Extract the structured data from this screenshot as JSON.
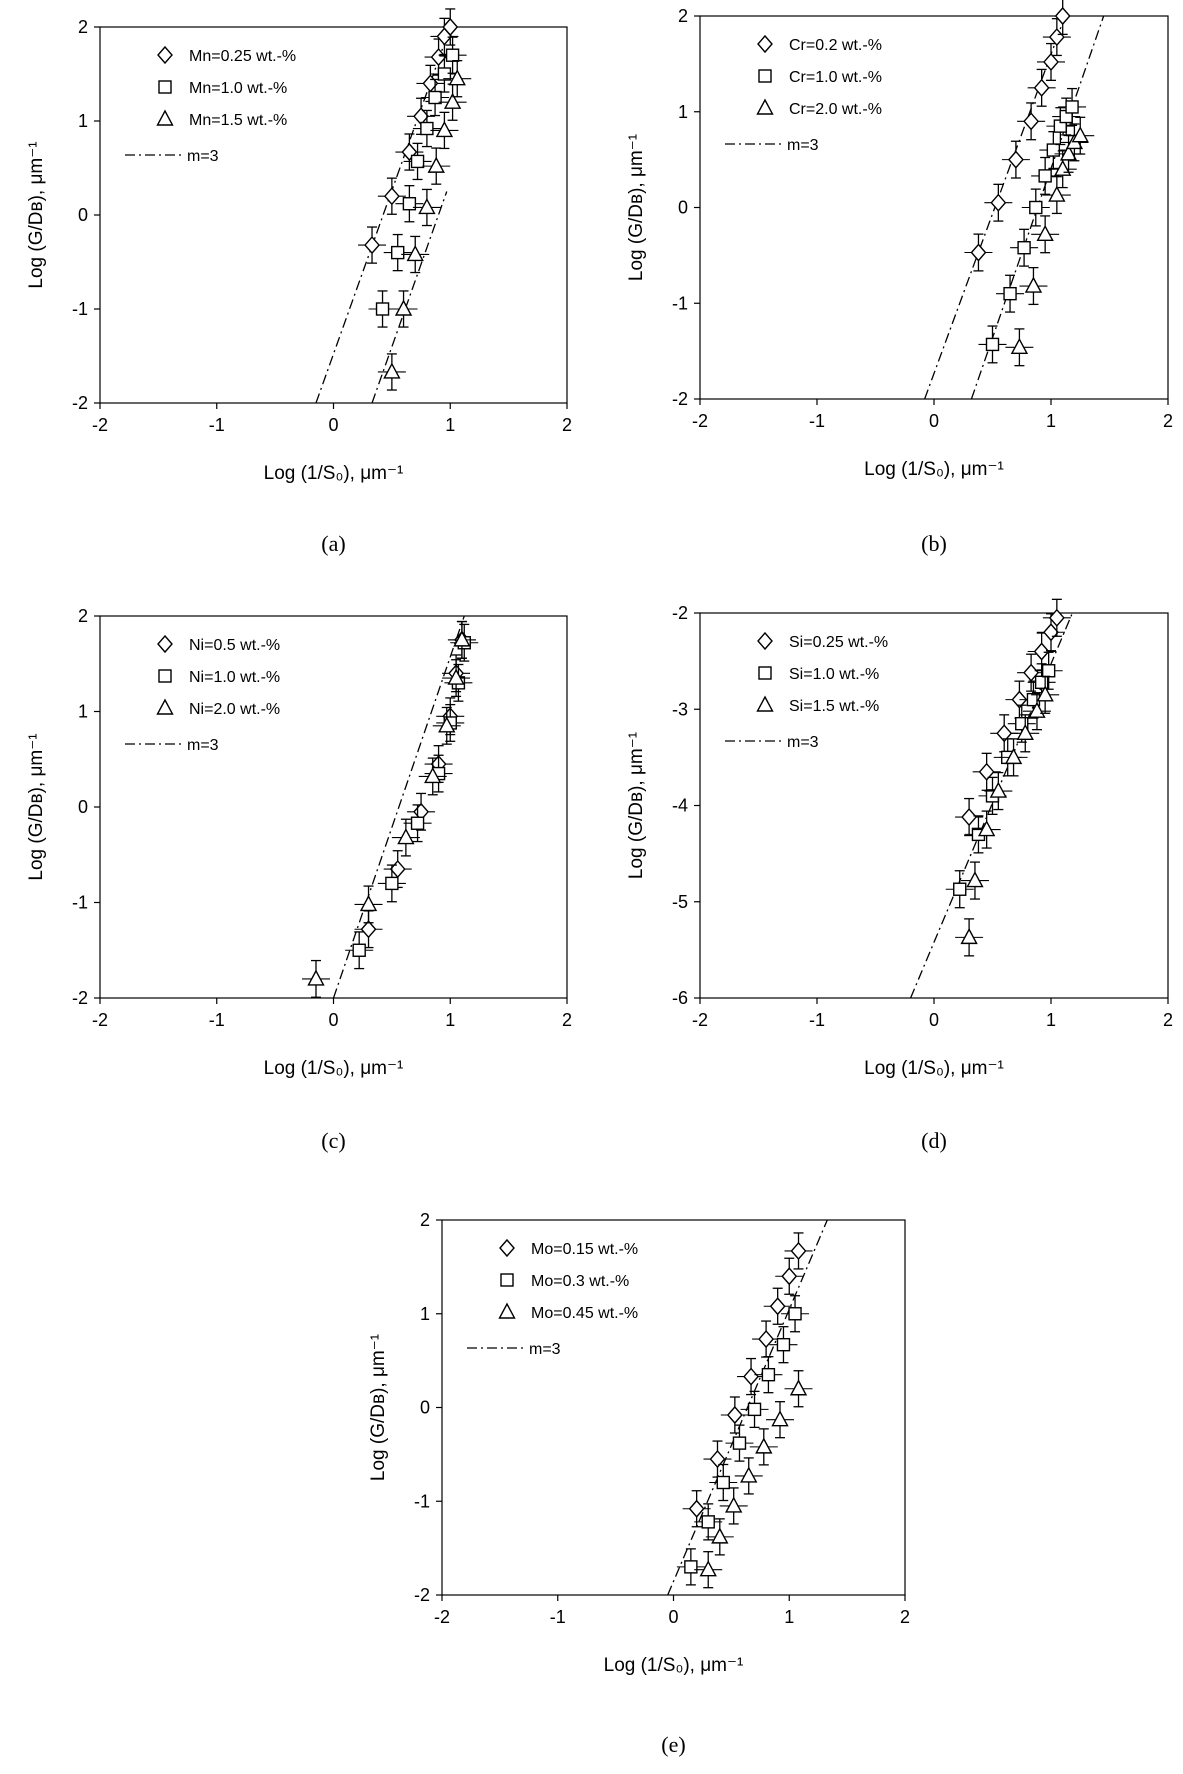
{
  "chart_data": [
    {
      "type": "scatter",
      "caption": "(a)",
      "xlabel": "Log (1/S₀), μm⁻¹",
      "ylabel": "Log (G/Dʙ),  μm⁻¹",
      "xlim": [
        -2,
        2
      ],
      "ylim": [
        -2,
        2
      ],
      "xticks": [
        "-2",
        "-1",
        "0",
        "1",
        "2"
      ],
      "yticks": [
        "2",
        "1",
        "0",
        "-1",
        "-2"
      ],
      "grid": false,
      "legend_position": "top-left",
      "series": [
        {
          "name": "Mn=0.25 wt.-%",
          "marker": "diamond",
          "x": [
            0.33,
            0.5,
            0.65,
            0.75,
            0.83,
            0.9,
            0.95,
            1.0
          ],
          "y": [
            -0.32,
            0.2,
            0.67,
            1.05,
            1.4,
            1.68,
            1.9,
            2.0
          ]
        },
        {
          "name": "Mn=1.0 wt.-%",
          "marker": "square",
          "x": [
            0.42,
            0.55,
            0.65,
            0.72,
            0.8,
            0.87,
            0.95,
            1.02
          ],
          "y": [
            -1.0,
            -0.4,
            0.12,
            0.57,
            0.92,
            1.25,
            1.5,
            1.7
          ]
        },
        {
          "name": "Mn=1.5 wt.-%",
          "marker": "triangle",
          "x": [
            0.5,
            0.6,
            0.7,
            0.8,
            0.88,
            0.95,
            1.02,
            1.06
          ],
          "y": [
            -1.67,
            -1.0,
            -0.42,
            0.08,
            0.52,
            0.9,
            1.2,
            1.45
          ]
        }
      ],
      "lines": [
        {
          "name": "m=3",
          "points": [
            [
              -0.15,
              -2
            ],
            [
              1.0,
              2.0
            ]
          ]
        },
        {
          "name": "",
          "points": [
            [
              0.33,
              -2
            ],
            [
              0.97,
              0.25
            ]
          ]
        }
      ]
    },
    {
      "type": "scatter",
      "caption": "(b)",
      "xlabel": "Log (1/S₀), μm⁻¹",
      "ylabel": "Log (G/Dʙ),  μm⁻¹",
      "xlim": [
        -2,
        2
      ],
      "ylim": [
        -2,
        2
      ],
      "xticks": [
        "-2",
        "-1",
        "0",
        "1",
        "2"
      ],
      "yticks": [
        "2",
        "1",
        "0",
        "-1",
        "-2"
      ],
      "grid": false,
      "legend_position": "top-left",
      "series": [
        {
          "name": "Cr=0.2 wt.-%",
          "marker": "diamond",
          "x": [
            0.38,
            0.55,
            0.7,
            0.83,
            0.92,
            1.0,
            1.05,
            1.1
          ],
          "y": [
            -0.47,
            0.05,
            0.5,
            0.9,
            1.25,
            1.52,
            1.78,
            2.0
          ]
        },
        {
          "name": "Cr=1.0 wt.-%",
          "marker": "square",
          "x": [
            0.5,
            0.65,
            0.77,
            0.87,
            0.95,
            1.02,
            1.08,
            1.13,
            1.18
          ],
          "y": [
            -1.43,
            -0.9,
            -0.42,
            0.0,
            0.33,
            0.6,
            0.85,
            0.95,
            1.05
          ]
        },
        {
          "name": "Cr=2.0 wt.-%",
          "marker": "triangle",
          "x": [
            0.73,
            0.85,
            0.95,
            1.05,
            1.1,
            1.15,
            1.2,
            1.25
          ],
          "y": [
            -1.46,
            -0.82,
            -0.28,
            0.13,
            0.4,
            0.56,
            0.68,
            0.75
          ]
        }
      ],
      "lines": [
        {
          "name": "m=3",
          "points": [
            [
              -0.08,
              -2
            ],
            [
              1.12,
              2.0
            ]
          ]
        },
        {
          "name": "",
          "points": [
            [
              0.32,
              -2
            ],
            [
              1.45,
              2.0
            ]
          ]
        }
      ]
    },
    {
      "type": "scatter",
      "caption": "(c)",
      "xlabel": "Log (1/S₀), μm⁻¹",
      "ylabel": "Log (G/Dʙ),  μm⁻¹",
      "xlim": [
        -2,
        2
      ],
      "ylim": [
        -2,
        2
      ],
      "xticks": [
        "-2",
        "-1",
        "0",
        "1",
        "2"
      ],
      "yticks": [
        "2",
        "1",
        "0",
        "-1",
        "-2"
      ],
      "grid": false,
      "legend_position": "top-left",
      "series": [
        {
          "name": "Ni=0.5 wt.-%",
          "marker": "diamond",
          "x": [
            0.3,
            0.55,
            0.75,
            0.9,
            1.0,
            1.05,
            1.1
          ],
          "y": [
            -1.28,
            -0.65,
            -0.05,
            0.45,
            0.95,
            1.4,
            1.75
          ]
        },
        {
          "name": "Ni=1.0 wt.-%",
          "marker": "square",
          "x": [
            0.22,
            0.5,
            0.72,
            0.9,
            1.0,
            1.07,
            1.12
          ],
          "y": [
            -1.5,
            -0.8,
            -0.17,
            0.35,
            0.88,
            1.3,
            1.72
          ]
        },
        {
          "name": "Ni=2.0 wt.-%",
          "marker": "triangle",
          "x": [
            -0.15,
            0.3,
            0.62,
            0.85,
            0.97,
            1.05,
            1.1
          ],
          "y": [
            -1.8,
            -1.02,
            -0.32,
            0.32,
            0.85,
            1.35,
            1.75
          ]
        }
      ],
      "lines": [
        {
          "name": "m=3",
          "points": [
            [
              0.0,
              -2
            ],
            [
              1.12,
              2.0
            ]
          ]
        }
      ]
    },
    {
      "type": "scatter",
      "caption": "(d)",
      "xlabel": "Log (1/S₀), μm⁻¹",
      "ylabel": "Log (G/Dʙ),  μm⁻¹",
      "xlim": [
        -2,
        2
      ],
      "ylim": [
        -6,
        -2
      ],
      "xticks": [
        "-2",
        "-1",
        "0",
        "1",
        "2"
      ],
      "yticks": [
        "-2",
        "-3",
        "-4",
        "-5",
        "-6"
      ],
      "grid": false,
      "legend_position": "top-left",
      "series": [
        {
          "name": "Si=0.25 wt.-%",
          "marker": "diamond",
          "x": [
            0.3,
            0.45,
            0.6,
            0.73,
            0.83,
            0.92,
            1.0,
            1.05
          ],
          "y": [
            -4.12,
            -3.65,
            -3.25,
            -2.9,
            -2.62,
            -2.4,
            -2.2,
            -2.05
          ]
        },
        {
          "name": "Si=1.0 wt.-%",
          "marker": "square",
          "x": [
            0.22,
            0.38,
            0.5,
            0.63,
            0.75,
            0.85,
            0.92,
            0.98
          ],
          "y": [
            -4.87,
            -4.3,
            -3.9,
            -3.5,
            -3.15,
            -2.9,
            -2.72,
            -2.6
          ]
        },
        {
          "name": "Si=1.5 wt.-%",
          "marker": "triangle",
          "x": [
            0.3,
            0.35,
            0.45,
            0.55,
            0.68,
            0.78,
            0.88,
            0.95
          ],
          "y": [
            -5.37,
            -4.78,
            -4.25,
            -3.85,
            -3.5,
            -3.25,
            -3.02,
            -2.85
          ]
        }
      ],
      "lines": [
        {
          "name": "m=3",
          "points": [
            [
              -0.2,
              -6
            ],
            [
              1.2,
              -1.95
            ]
          ]
        }
      ]
    },
    {
      "type": "scatter",
      "caption": "(e)",
      "xlabel": "Log (1/S₀), μm⁻¹",
      "ylabel": "Log (G/Dʙ),  μm⁻¹",
      "xlim": [
        -2,
        2
      ],
      "ylim": [
        -2,
        2
      ],
      "xticks": [
        "-2",
        "-1",
        "0",
        "1",
        "2"
      ],
      "yticks": [
        "2",
        "1",
        "0",
        "-1",
        "-2"
      ],
      "grid": false,
      "legend_position": "top-left",
      "series": [
        {
          "name": "Mo=0.15 wt.-%",
          "marker": "diamond",
          "x": [
            0.2,
            0.38,
            0.53,
            0.67,
            0.8,
            0.9,
            1.0,
            1.08
          ],
          "y": [
            -1.08,
            -0.55,
            -0.08,
            0.33,
            0.73,
            1.08,
            1.4,
            1.67
          ]
        },
        {
          "name": "Mo=0.3 wt.-%",
          "marker": "square",
          "x": [
            0.15,
            0.3,
            0.43,
            0.57,
            0.7,
            0.82,
            0.95,
            1.05
          ],
          "y": [
            -1.7,
            -1.22,
            -0.8,
            -0.38,
            -0.02,
            0.35,
            0.67,
            1.0
          ]
        },
        {
          "name": "Mo=0.45 wt.-%",
          "marker": "triangle",
          "x": [
            0.3,
            0.4,
            0.52,
            0.65,
            0.78,
            0.92,
            1.08
          ],
          "y": [
            -1.73,
            -1.38,
            -1.05,
            -0.73,
            -0.42,
            -0.13,
            0.2
          ]
        }
      ],
      "lines": [
        {
          "name": "m=3",
          "points": [
            [
              -0.05,
              -2
            ],
            [
              1.37,
              2.12
            ]
          ]
        }
      ]
    }
  ]
}
